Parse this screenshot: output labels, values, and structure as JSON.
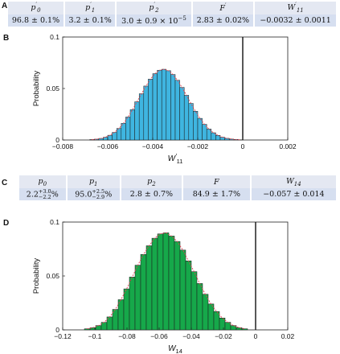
{
  "panels": {
    "A": "A",
    "B": "B",
    "C": "C",
    "D": "D"
  },
  "table_A": {
    "headers": [
      {
        "sym": "p",
        "sub": "0",
        "prime": "′"
      },
      {
        "sym": "p",
        "sub": "1",
        "prime": "′"
      },
      {
        "sym": "p",
        "sub": "2",
        "prime": "′"
      },
      {
        "sym": "F",
        "sub": "",
        "prime": "′"
      },
      {
        "sym": "W",
        "sub": "11",
        "prime": "′"
      }
    ],
    "values": [
      "96.8 ± 0.1%",
      "3.2 ± 0.1%",
      "3.0 ± 0.9 × 10",
      "2.83 ± 0.02%",
      "−0.0032 ± 0.0011"
    ],
    "p2_exp": "−5"
  },
  "table_C": {
    "headers": [
      {
        "sym": "p",
        "sub": "0"
      },
      {
        "sym": "p",
        "sub": "1"
      },
      {
        "sym": "p",
        "sub": "2"
      },
      {
        "sym": "F",
        "sub": ""
      },
      {
        "sym": "W",
        "sub": "14"
      }
    ],
    "p0": {
      "base": "2.2",
      "plus": "+3.0",
      "minus": "−2.2",
      "unit": "%"
    },
    "p1": {
      "base": "95.0",
      "plus": "+2.5",
      "minus": "−2.9",
      "unit": "%"
    },
    "values": [
      "2.8 ± 0.7%",
      "84.9 ± 1.7%",
      "−0.057 ± 0.014"
    ]
  },
  "chart_data": [
    {
      "type": "bar",
      "panel": "B",
      "ylabel": "Probability",
      "xlabel_sym": "W",
      "xlabel_sub": "11",
      "xlabel_prime": "′",
      "xlim": [
        -0.008,
        0.002
      ],
      "ylim": [
        0,
        0.1
      ],
      "xticks": [
        "−0.008",
        "−0.006",
        "−0.004",
        "−0.002",
        "0",
        "0.002"
      ],
      "yticks": [
        "0",
        "0.05",
        "0.1"
      ],
      "bar_color": "#3fb5e0",
      "fit_color": "#e04050",
      "bin_width": 0.0002,
      "distribution": {
        "mean": -0.0032,
        "sd": 0.001,
        "peak": 0.079
      },
      "x_start": -0.0068,
      "values": [
        0.0004,
        0.0008,
        0.0015,
        0.0027,
        0.0046,
        0.0074,
        0.0112,
        0.0162,
        0.0223,
        0.0294,
        0.0371,
        0.0449,
        0.0524,
        0.0591,
        0.0644,
        0.0677,
        0.0687,
        0.0673,
        0.0636,
        0.058,
        0.0511,
        0.0434,
        0.0355,
        0.0279,
        0.021,
        0.0152,
        0.0106,
        0.007,
        0.0045,
        0.0027,
        0.0016,
        0.0009,
        0.0005,
        0.0002
      ],
      "vline_x": 0
    },
    {
      "type": "bar",
      "panel": "D",
      "ylabel": "Probability",
      "xlabel_sym": "W",
      "xlabel_sub": "14",
      "xlim": [
        -0.12,
        0.02
      ],
      "ylim": [
        0,
        0.1
      ],
      "xticks": [
        "−0.12",
        "−0.1",
        "−0.08",
        "−0.06",
        "−0.04",
        "−0.02",
        "0",
        "0.02"
      ],
      "yticks": [
        "0",
        "0.05",
        "0.1"
      ],
      "bar_color": "#16a84a",
      "fit_color": "#e04050",
      "bin_width": 0.0035,
      "x_start": -0.1065,
      "values": [
        0.001,
        0.002,
        0.004,
        0.007,
        0.012,
        0.019,
        0.028,
        0.038,
        0.049,
        0.06,
        0.07,
        0.078,
        0.085,
        0.089,
        0.09,
        0.087,
        0.082,
        0.074,
        0.064,
        0.054,
        0.043,
        0.033,
        0.024,
        0.017,
        0.011,
        0.007,
        0.004,
        0.002,
        0.001
      ],
      "vline_x": 0
    }
  ]
}
